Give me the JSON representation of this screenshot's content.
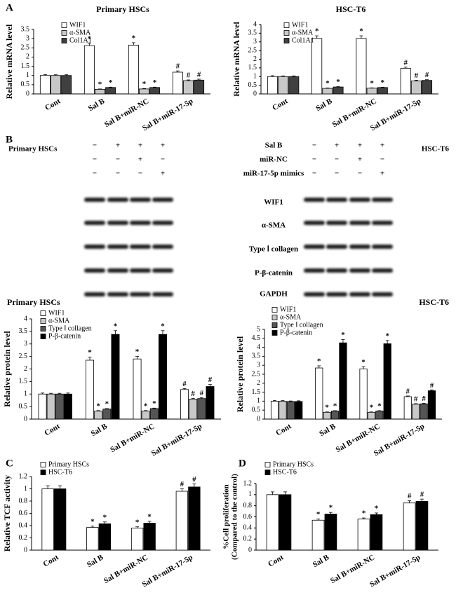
{
  "panel_labels": [
    "A",
    "B",
    "C",
    "D"
  ],
  "blot": {
    "left_title": "Primary HSCs",
    "right_title": "HSC-T6",
    "conditions": [
      {
        "name": "Sal B",
        "signs": [
          "−",
          "+",
          "+",
          "+"
        ]
      },
      {
        "name": "miR-NC",
        "signs": [
          "−",
          "−",
          "+",
          "−"
        ]
      },
      {
        "name": "miR-17-5p mimics",
        "signs": [
          "−",
          "−",
          "−",
          "+"
        ]
      }
    ],
    "proteins": [
      "WIF1",
      "α-SMA",
      "Type Ⅰ collagen",
      "P-β-catenin",
      "GAPDH"
    ]
  },
  "chart_data": [
    {
      "type": "bar",
      "title": "Primary HSCs",
      "y_label": "Relative mRNA level",
      "categories": [
        "Cont",
        "Sal B",
        "Sal B+miR-NC",
        "Sal B+miR-17-5p"
      ],
      "ylim": [
        0,
        3.5
      ],
      "yticks": [
        0,
        0.5,
        1,
        1.5,
        2,
        2.5,
        3,
        3.5
      ],
      "series": [
        {
          "name": "WIF1",
          "color": "#ffffff",
          "values": [
            1.0,
            2.62,
            2.65,
            1.18
          ],
          "errors": [
            0.05,
            0.12,
            0.13,
            0.07
          ],
          "labels": [
            null,
            "*",
            "*",
            "#"
          ]
        },
        {
          "name": "α-SMA",
          "color": "#c8c8c8",
          "values": [
            1.0,
            0.25,
            0.27,
            0.72
          ],
          "errors": [
            0.04,
            0.02,
            0.02,
            0.04
          ],
          "labels": [
            null,
            "*",
            "*",
            "#"
          ]
        },
        {
          "name": "Col1A1",
          "color": "#404040",
          "values": [
            1.0,
            0.35,
            0.35,
            0.75
          ],
          "errors": [
            0.04,
            0.02,
            0.02,
            0.05
          ],
          "labels": [
            null,
            "*",
            "*",
            "#"
          ]
        }
      ]
    },
    {
      "type": "bar",
      "title": "HSC-T6",
      "y_label": "Relative mRNA level",
      "categories": [
        "Cont",
        "Sal B",
        "Sal B+miR-NC",
        "Sal B+miR-17-5p"
      ],
      "ylim": [
        0,
        4
      ],
      "yticks": [
        0,
        0.5,
        1,
        1.5,
        2,
        2.5,
        3,
        3.5,
        4
      ],
      "series": [
        {
          "name": "WIF1",
          "color": "#ffffff",
          "values": [
            1.0,
            3.2,
            3.2,
            1.48
          ],
          "errors": [
            0.05,
            0.15,
            0.15,
            0.06
          ],
          "labels": [
            null,
            "*",
            "*",
            "#"
          ]
        },
        {
          "name": "α-SMA",
          "color": "#c8c8c8",
          "values": [
            1.0,
            0.32,
            0.33,
            0.75
          ],
          "errors": [
            0.04,
            0.02,
            0.02,
            0.04
          ],
          "labels": [
            null,
            "*",
            "*",
            "#"
          ]
        },
        {
          "name": "Col1A1",
          "color": "#404040",
          "values": [
            1.0,
            0.4,
            0.37,
            0.78
          ],
          "errors": [
            0.04,
            0.02,
            0.02,
            0.04
          ],
          "labels": [
            null,
            "*",
            "*",
            "#"
          ]
        }
      ]
    },
    {
      "type": "bar",
      "title": "Primary HSCs",
      "y_label": "Relative protein level",
      "categories": [
        "Cont",
        "Sal B",
        "Sal B+miR-NC",
        "Sal B+miR-17-5p"
      ],
      "ylim": [
        0,
        4
      ],
      "yticks": [
        0,
        0.5,
        1,
        1.5,
        2,
        2.5,
        3,
        3.5,
        4
      ],
      "series": [
        {
          "name": "WIF1",
          "color": "#ffffff",
          "values": [
            1.0,
            2.35,
            2.4,
            1.18
          ],
          "errors": [
            0.04,
            0.12,
            0.1,
            0.04
          ],
          "labels": [
            null,
            "*",
            "*",
            "#"
          ]
        },
        {
          "name": "α-SMA",
          "color": "#c8c8c8",
          "values": [
            1.0,
            0.32,
            0.32,
            0.8
          ],
          "errors": [
            0.03,
            0.02,
            0.02,
            0.03
          ],
          "labels": [
            null,
            "*",
            "*",
            "#"
          ]
        },
        {
          "name": "Type Ⅰ collagen",
          "color": "#555555",
          "values": [
            1.0,
            0.4,
            0.42,
            0.82
          ],
          "errors": [
            0.03,
            0.02,
            0.02,
            0.03
          ],
          "labels": [
            null,
            "*",
            "*",
            "#"
          ]
        },
        {
          "name": "P-β-catenin",
          "color": "#000000",
          "values": [
            1.0,
            3.38,
            3.38,
            1.3
          ],
          "errors": [
            0.04,
            0.15,
            0.15,
            0.08
          ],
          "labels": [
            null,
            "*",
            "*",
            "#"
          ]
        }
      ]
    },
    {
      "type": "bar",
      "title": "HSC-T6",
      "y_label": "Relative protein level",
      "categories": [
        "Cont",
        "Sal B",
        "Sal B+miR-NC",
        "Sal B+miR-17-5p"
      ],
      "ylim": [
        0,
        5
      ],
      "yticks": [
        0,
        0.5,
        1,
        1.5,
        2,
        2.5,
        3,
        3.5,
        4,
        4.5,
        5
      ],
      "series": [
        {
          "name": "WIF1",
          "color": "#ffffff",
          "values": [
            1.0,
            2.85,
            2.8,
            1.25
          ],
          "errors": [
            0.04,
            0.12,
            0.12,
            0.04
          ],
          "labels": [
            null,
            "*",
            "*",
            "#"
          ]
        },
        {
          "name": "α-SMA",
          "color": "#c8c8c8",
          "values": [
            1.0,
            0.38,
            0.38,
            0.83
          ],
          "errors": [
            0.03,
            0.02,
            0.02,
            0.03
          ],
          "labels": [
            null,
            "*",
            "*",
            "#"
          ]
        },
        {
          "name": "Type Ⅰ collagen",
          "color": "#555555",
          "values": [
            0.98,
            0.45,
            0.45,
            0.85
          ],
          "errors": [
            0.03,
            0.02,
            0.02,
            0.03
          ],
          "labels": [
            null,
            "*",
            "*",
            "#"
          ]
        },
        {
          "name": "P-β-catenin",
          "color": "#000000",
          "values": [
            0.98,
            4.25,
            4.2,
            1.58
          ],
          "errors": [
            0.04,
            0.18,
            0.18,
            0.05
          ],
          "labels": [
            null,
            "*",
            "*",
            "#"
          ]
        }
      ]
    },
    {
      "type": "bar",
      "y_label": "Relative TCF activity",
      "categories": [
        "Cont",
        "Sal B",
        "Sal B+miR-NC",
        "Sal B+miR-17-5p"
      ],
      "ylim": [
        0,
        1.2
      ],
      "yticks": [
        0,
        0.2,
        0.4,
        0.6,
        0.8,
        1,
        1.2
      ],
      "series": [
        {
          "name": "Primary HSCs",
          "color": "#ffffff",
          "values": [
            1.0,
            0.37,
            0.36,
            0.96
          ],
          "errors": [
            0.05,
            0.02,
            0.02,
            0.04
          ],
          "labels": [
            null,
            "*",
            "*",
            "#"
          ]
        },
        {
          "name": "HSC-T6",
          "color": "#000000",
          "values": [
            1.0,
            0.43,
            0.44,
            1.03
          ],
          "errors": [
            0.05,
            0.03,
            0.03,
            0.05
          ],
          "labels": [
            null,
            "*",
            "*",
            "#"
          ]
        }
      ]
    },
    {
      "type": "bar",
      "y_label": [
        "%Cell proliferation",
        "(Compared to the control)"
      ],
      "categories": [
        "Cont",
        "Sal B",
        "Sal B+miR-NC",
        "Sal B+miR-17-5p"
      ],
      "ylim": [
        0,
        1.2
      ],
      "yticks": [
        0,
        0.2,
        0.4,
        0.6,
        0.8,
        1,
        1.2
      ],
      "series": [
        {
          "name": "Primary HSCs",
          "color": "#ffffff",
          "values": [
            1.0,
            0.54,
            0.56,
            0.85
          ],
          "errors": [
            0.05,
            0.02,
            0.02,
            0.04
          ],
          "labels": [
            null,
            "*",
            "*",
            "#"
          ]
        },
        {
          "name": "HSC-T6",
          "color": "#000000",
          "values": [
            1.0,
            0.65,
            0.64,
            0.88
          ],
          "errors": [
            0.05,
            0.03,
            0.03,
            0.04
          ],
          "labels": [
            null,
            "*",
            "*",
            "#"
          ]
        }
      ]
    }
  ]
}
